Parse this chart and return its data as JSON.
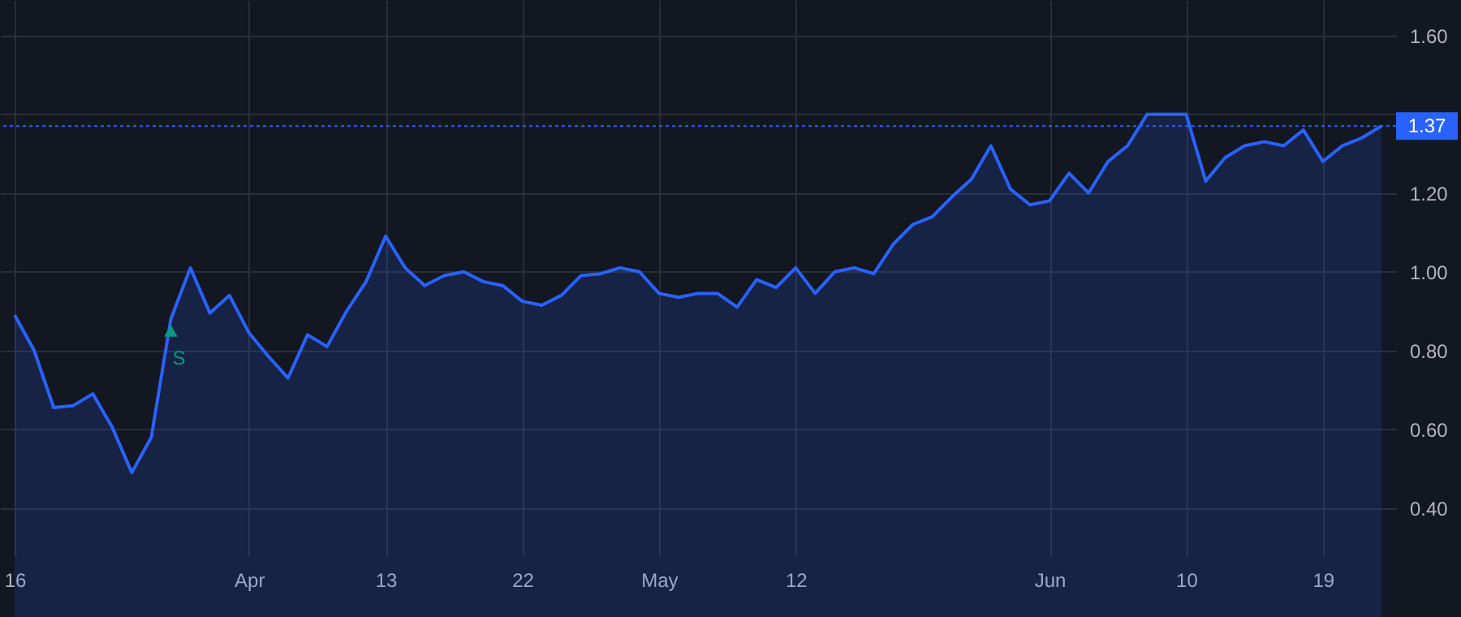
{
  "chart_data": {
    "type": "area",
    "categories": [
      "16",
      null,
      null,
      null,
      null,
      null,
      null,
      null,
      null,
      null,
      null,
      null,
      "Apr",
      null,
      null,
      null,
      null,
      null,
      null,
      "13",
      null,
      null,
      null,
      null,
      null,
      null,
      "22",
      null,
      null,
      null,
      null,
      null,
      null,
      "May",
      null,
      null,
      null,
      null,
      null,
      null,
      "12",
      null,
      null,
      null,
      null,
      null,
      null,
      null,
      null,
      null,
      null,
      null,
      null,
      "Jun",
      null,
      null,
      null,
      null,
      null,
      null,
      "10",
      null,
      null,
      null,
      null,
      null,
      null,
      "19",
      null,
      null,
      null
    ],
    "series": [
      {
        "color": "#2962ff",
        "values": [
          0.89,
          0.8,
          0.655,
          0.66,
          0.69,
          0.605,
          0.49,
          0.58,
          0.88,
          1.01,
          0.895,
          0.94,
          0.845,
          0.785,
          0.73,
          0.84,
          0.81,
          0.9,
          0.975,
          1.09,
          1.01,
          0.965,
          0.99,
          1.0,
          0.975,
          0.965,
          0.925,
          0.915,
          0.94,
          0.99,
          0.995,
          1.01,
          1.0,
          0.945,
          0.935,
          0.945,
          0.945,
          0.91,
          0.98,
          0.96,
          1.01,
          0.945,
          1.0,
          1.01,
          0.995,
          1.07,
          1.12,
          1.14,
          1.19,
          1.235,
          1.32,
          1.21,
          1.17,
          1.18,
          1.25,
          1.2,
          1.28,
          1.32,
          1.4,
          1.4,
          1.4,
          1.23,
          1.29,
          1.32,
          1.33,
          1.32,
          1.36,
          1.28,
          1.32,
          1.34,
          1.37
        ]
      },
      {
        "type": "scatter",
        "marker": "triangle",
        "color": "#089981",
        "values": [
          null,
          null,
          null,
          null,
          null,
          null,
          null,
          null,
          0.85,
          null,
          null,
          null,
          null,
          null,
          null,
          null,
          null,
          null,
          null,
          null,
          null,
          null,
          null,
          null,
          null,
          null,
          null,
          null,
          null,
          null,
          null,
          null,
          null,
          null,
          null,
          null,
          null,
          null,
          null,
          null,
          null,
          null,
          null,
          null,
          null,
          null,
          null,
          null,
          null,
          null,
          null,
          null,
          null,
          null,
          null,
          null,
          null,
          null,
          null,
          null,
          null,
          null,
          null,
          null,
          null,
          null,
          null,
          null,
          null,
          null,
          null
        ]
      }
    ],
    "annotations": [
      "S"
    ],
    "ylim": [
      0.28,
      1.69
    ],
    "yticks": [
      {
        "value": 0.4,
        "label": "0.40"
      },
      {
        "value": 0.6,
        "label": "0.60"
      },
      {
        "value": 0.8,
        "label": "0.80"
      },
      {
        "value": 1.0,
        "label": "1.00"
      },
      {
        "value": 1.2,
        "label": "1.20"
      },
      {
        "value": 1.4,
        "label": null
      },
      {
        "value": 1.6,
        "label": "1.60"
      }
    ],
    "grid": true,
    "ref_lines": [
      {
        "axis": "y",
        "value": 1.37,
        "label": "1.37",
        "color": "#2962ff",
        "line_style": "dotted"
      }
    ]
  }
}
